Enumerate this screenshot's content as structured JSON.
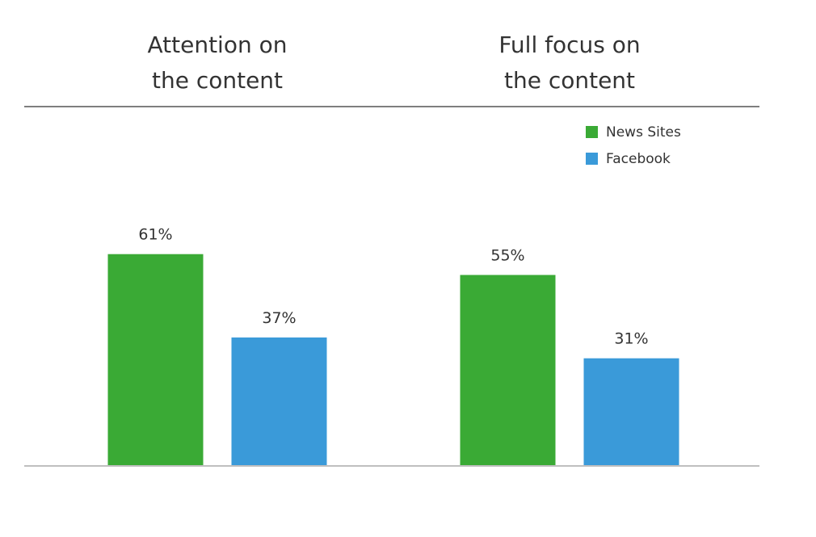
{
  "chart_data": {
    "type": "bar",
    "categories": [
      [
        "Attention on",
        "the content"
      ],
      [
        "Full focus on",
        "the content"
      ]
    ],
    "series": [
      {
        "name": "News Sites",
        "values": [
          61,
          55
        ],
        "color": "#3aaa35"
      },
      {
        "name": "Facebook",
        "values": [
          37,
          31
        ],
        "color": "#3a9ad9"
      }
    ],
    "value_suffix": "%",
    "ylim": [
      0,
      100
    ],
    "grid": false,
    "legend_position": "top-right",
    "title": "",
    "xlabel": "",
    "ylabel": ""
  },
  "colors": {
    "axis_line": "#7f7f7f",
    "text": "#333333"
  }
}
